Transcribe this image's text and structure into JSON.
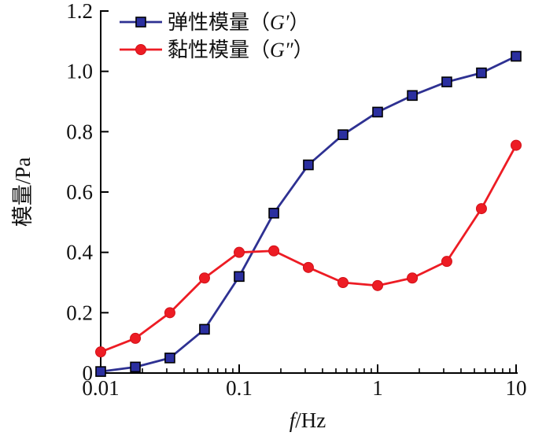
{
  "figure": {
    "background": "#ffffff",
    "axis_color": "#000000",
    "text_color": "#111111"
  },
  "chart_data": {
    "type": "line",
    "x_scale": "log",
    "grid": false,
    "legend_position": "top-left-inside",
    "xlabel": {
      "italic": "f",
      "rest": "/Hz"
    },
    "ylabel": "模量/Pa",
    "xlim": [
      0.01,
      10
    ],
    "ylim": [
      0,
      1.2
    ],
    "x_ticks": [
      {
        "value": 0.01,
        "label": "0.01"
      },
      {
        "value": 0.1,
        "label": "0.1"
      },
      {
        "value": 1,
        "label": "1"
      },
      {
        "value": 10,
        "label": "10"
      }
    ],
    "y_ticks": [
      {
        "value": 0,
        "label": "0"
      },
      {
        "value": 0.2,
        "label": "0.2"
      },
      {
        "value": 0.4,
        "label": "0.4"
      },
      {
        "value": 0.6,
        "label": "0.6"
      },
      {
        "value": 0.8,
        "label": "0.8"
      },
      {
        "value": 1.0,
        "label": "1.0"
      },
      {
        "value": 1.2,
        "label": "1.2"
      }
    ],
    "x": [
      0.01,
      0.0178,
      0.0316,
      0.0562,
      0.1,
      0.178,
      0.316,
      0.562,
      1,
      1.78,
      3.16,
      5.62,
      10
    ],
    "series": [
      {
        "name": "弹性模量（G′）",
        "legend_prefix": "弹性模量（",
        "legend_symbol": "G′",
        "legend_suffix": "）",
        "color": "#2e3192",
        "marker": "square",
        "marker_fill": "#2b2fa0",
        "marker_edge": "#000000",
        "values": [
          0.005,
          0.02,
          0.05,
          0.145,
          0.32,
          0.53,
          0.69,
          0.79,
          0.865,
          0.92,
          0.965,
          0.995,
          1.05
        ]
      },
      {
        "name": "黏性模量（G″）",
        "legend_prefix": "黏性模量（",
        "legend_symbol": "G″",
        "legend_suffix": "）",
        "color": "#ed1c24",
        "marker": "circle",
        "marker_fill": "#ed1c24",
        "marker_edge": "#d21118",
        "values": [
          0.07,
          0.115,
          0.2,
          0.315,
          0.4,
          0.405,
          0.35,
          0.3,
          0.29,
          0.315,
          0.37,
          0.545,
          0.755
        ]
      }
    ]
  }
}
